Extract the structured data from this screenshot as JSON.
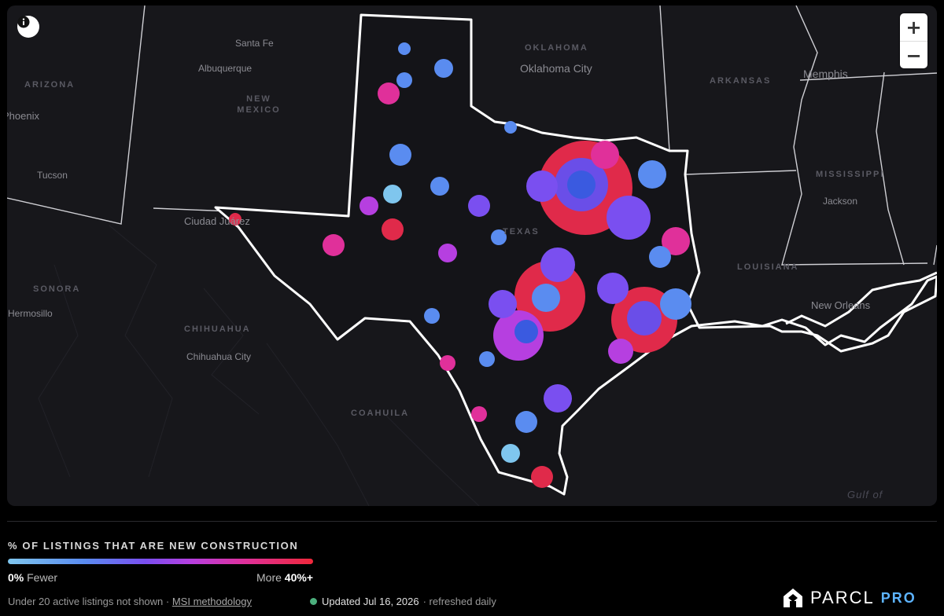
{
  "map": {
    "state_labels": [
      "ARIZONA",
      "NEW MEXICO",
      "OKLAHOMA",
      "ARKANSAS",
      "MISSISSIPPI",
      "LOUISIANA",
      "SONORA",
      "CHIHUAHUA",
      "COAHUILA",
      "TEXAS"
    ],
    "city_labels": [
      "Santa Fe",
      "Albuquerque",
      "Oklahoma City",
      "Memphis",
      "Phoenix",
      "Tucson",
      "Jackson",
      "Ciudad Juárez",
      "New Orleans",
      "Hermosillo",
      "Chihuahua City"
    ],
    "water_labels": [
      "Gulf of"
    ],
    "info_icon": "info-icon",
    "zoom_in_label": "+",
    "zoom_out_label": "−",
    "colors": {
      "low": "#7fc6ee",
      "mid_low": "#5a8cf0",
      "mid": "#7a4ff0",
      "mid_high": "#b63fe0",
      "high_pink": "#e0309a",
      "high": "#f0283a"
    }
  },
  "legend": {
    "title": "% OF LISTINGS THAT ARE NEW CONSTRUCTION",
    "min_value": "0%",
    "min_text": "Fewer",
    "max_text": "More",
    "max_value": "40%+"
  },
  "footer": {
    "note": "Under 20 active listings not shown ·",
    "methodology_link": "MSI methodology",
    "updated": "Updated Jul 16, 2026",
    "refresh": "· refreshed daily",
    "brand_name": "PARCL",
    "brand_tier": "PRO",
    "brand_icon": "parcl-logo-icon"
  }
}
